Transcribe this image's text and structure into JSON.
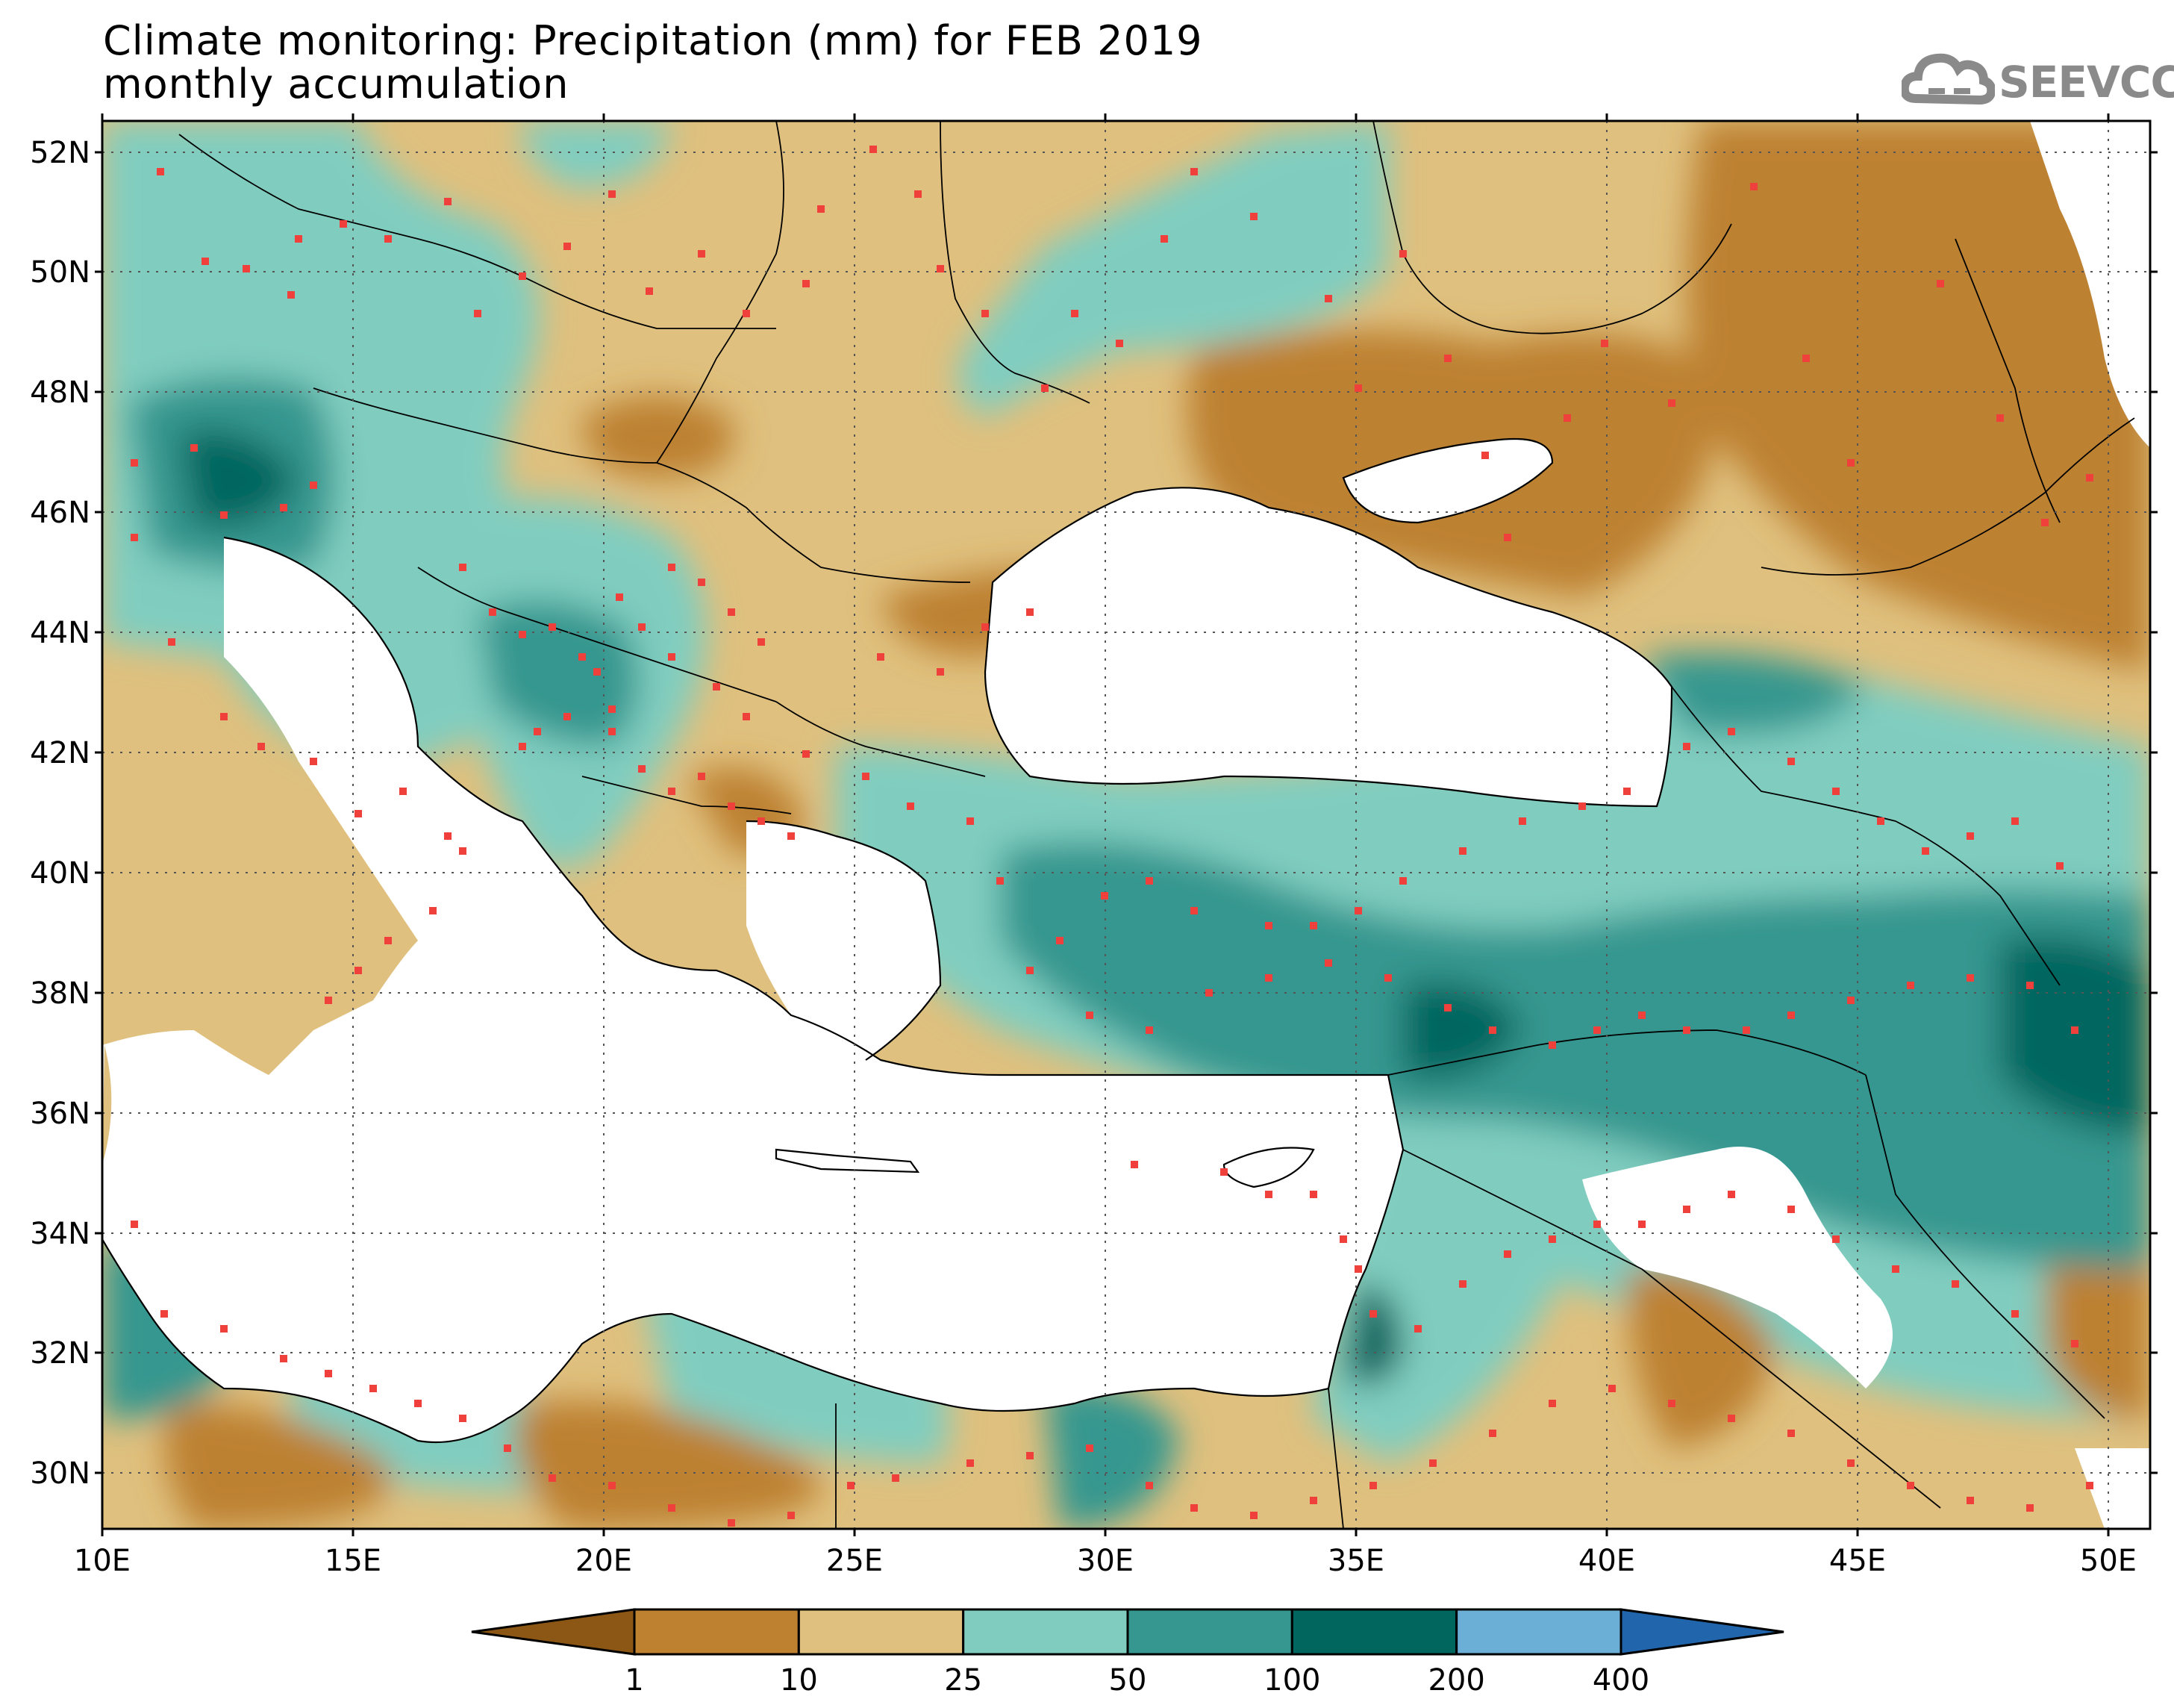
{
  "title": {
    "line1": "Climate monitoring: Precipitation (mm) for FEB 2019",
    "line2": "monthly accumulation"
  },
  "logo": {
    "text": "SEEVCCC",
    "icon": "cloud-icon"
  },
  "axes": {
    "lat_labels": [
      "52N",
      "50N",
      "48N",
      "46N",
      "44N",
      "42N",
      "40N",
      "38N",
      "36N",
      "34N",
      "32N",
      "30N"
    ],
    "lon_labels": [
      "10E",
      "15E",
      "20E",
      "25E",
      "30E",
      "35E",
      "40E",
      "45E",
      "50E"
    ]
  },
  "colorbar": {
    "labels": [
      "1",
      "10",
      "25",
      "50",
      "100",
      "200",
      "400"
    ],
    "colors": [
      "#8c5614",
      "#bd8130",
      "#dfc07e",
      "#80cdc0",
      "#35978f",
      "#01665e",
      "#6baed6",
      "#2166ac"
    ]
  },
  "colors": {
    "sea": "#ffffff",
    "station_marker": "#f0403c",
    "border": "#000000",
    "grid": "#555555"
  }
}
